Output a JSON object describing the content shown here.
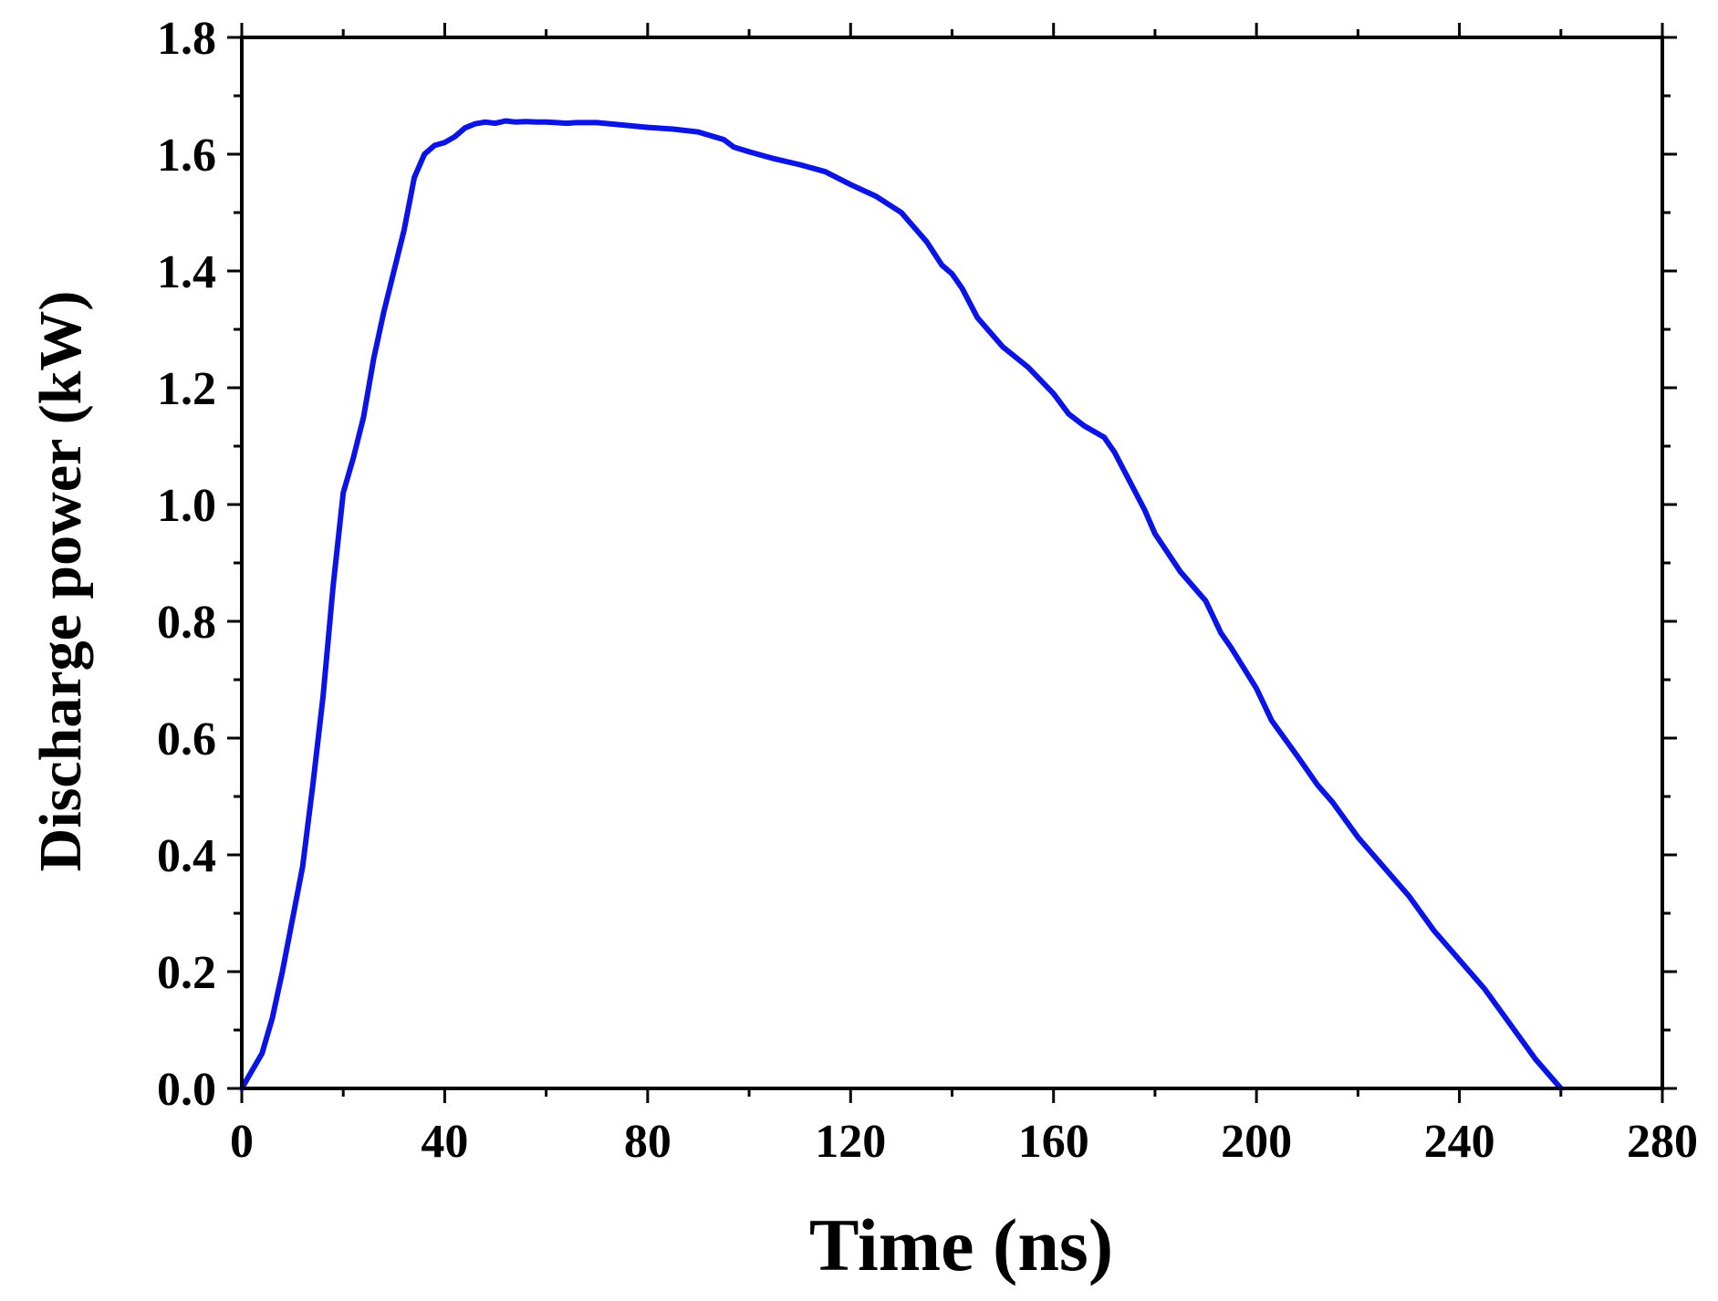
{
  "chart_data": {
    "type": "line",
    "title": "",
    "xlabel": "Time (ns)",
    "ylabel": "Discharge power (kW)",
    "xlim": [
      0,
      280
    ],
    "ylim": [
      0,
      1.8
    ],
    "xticks": [
      0,
      40,
      80,
      120,
      160,
      200,
      240,
      280
    ],
    "yticks": [
      0.0,
      0.2,
      0.4,
      0.6,
      0.8,
      1.0,
      1.2,
      1.4,
      1.6,
      1.8
    ],
    "xtick_labels": [
      "0",
      "40",
      "80",
      "120",
      "160",
      "200",
      "240",
      "280"
    ],
    "ytick_labels": [
      "0.0",
      "0.2",
      "0.4",
      "0.6",
      "0.8",
      "1.0",
      "1.2",
      "1.4",
      "1.6",
      "1.8"
    ],
    "grid": false,
    "series": [
      {
        "name": "Discharge power",
        "color": "#0a14e6",
        "x": [
          0,
          2,
          4,
          6,
          8,
          10,
          12,
          14,
          16,
          18,
          20,
          22,
          24,
          26,
          28,
          30,
          32,
          34,
          36,
          38,
          40,
          42,
          44,
          46,
          48,
          50,
          52,
          54,
          56,
          58,
          60,
          62,
          64,
          66,
          70,
          75,
          80,
          85,
          90,
          95,
          97,
          100,
          105,
          110,
          115,
          120,
          125,
          130,
          132,
          135,
          138,
          140,
          142,
          145,
          148,
          150,
          155,
          160,
          163,
          166,
          170,
          172,
          175,
          178,
          180,
          185,
          190,
          193,
          195,
          200,
          203,
          208,
          212,
          215,
          220,
          225,
          230,
          235,
          240,
          245,
          250,
          255,
          260
        ],
        "values": [
          0.0,
          0.03,
          0.06,
          0.12,
          0.2,
          0.29,
          0.38,
          0.52,
          0.67,
          0.86,
          1.02,
          1.08,
          1.15,
          1.25,
          1.33,
          1.4,
          1.47,
          1.56,
          1.6,
          1.615,
          1.62,
          1.63,
          1.645,
          1.652,
          1.655,
          1.653,
          1.657,
          1.655,
          1.656,
          1.655,
          1.655,
          1.654,
          1.653,
          1.654,
          1.654,
          1.65,
          1.646,
          1.643,
          1.638,
          1.625,
          1.612,
          1.604,
          1.592,
          1.582,
          1.57,
          1.548,
          1.528,
          1.5,
          1.48,
          1.45,
          1.41,
          1.395,
          1.37,
          1.32,
          1.29,
          1.27,
          1.235,
          1.19,
          1.155,
          1.135,
          1.115,
          1.09,
          1.04,
          0.99,
          0.95,
          0.885,
          0.835,
          0.78,
          0.755,
          0.685,
          0.63,
          0.57,
          0.52,
          0.49,
          0.43,
          0.38,
          0.33,
          0.27,
          0.22,
          0.17,
          0.11,
          0.05,
          0.0
        ]
      }
    ]
  }
}
